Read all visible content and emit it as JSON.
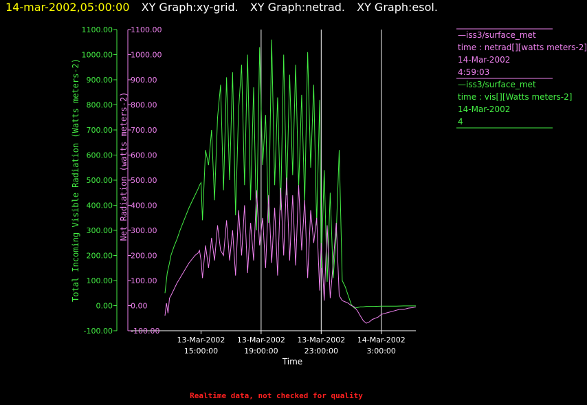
{
  "header": {
    "timestamp": "14-mar-2002,05:00:00",
    "titles": [
      "XY Graph:xy-grid.",
      "XY Graph:netrad.",
      "XY Graph:esol."
    ]
  },
  "colors": {
    "background": "#000000",
    "timestamp": "#ffff00",
    "title": "#ffffff",
    "vis_series": "#44ee44",
    "netrad_series": "#ee82ee",
    "grid": "#ffffff",
    "footer": "#ff2020"
  },
  "legend": [
    {
      "station": "—iss3/surface_met",
      "var": "time : netrad[][watts meters-2]",
      "date": "14-Mar-2002",
      "value": "4:59:03",
      "color": "#ee82ee"
    },
    {
      "station": "—iss3/surface_met",
      "var": "time : vis[][Watts meters-2]",
      "date": "14-Mar-2002",
      "value": "4",
      "color": "#44ee44"
    }
  ],
  "footer": "Realtime data, not checked for quality",
  "chart_data": {
    "type": "line",
    "title": "",
    "xlabel": "Time",
    "ylabel_left": "Total Incoming Visible Radiation (Watts meters-2)",
    "ylabel_right": "Net Radiation (watts meters-2)",
    "xlim": [
      12.6,
      29.3
    ],
    "ylim": [
      -100,
      1100
    ],
    "y_ticks": [
      "-100.00",
      "0.00",
      "100.00",
      "200.00",
      "300.00",
      "400.00",
      "500.00",
      "600.00",
      "700.00",
      "800.00",
      "900.00",
      "1000.00",
      "1100.00"
    ],
    "x_ticks": [
      {
        "x": 15,
        "date": "13-Mar-2002",
        "time": "15:00:00"
      },
      {
        "x": 19,
        "date": "13-Mar-2002",
        "time": "19:00:00"
      },
      {
        "x": 23,
        "date": "13-Mar-2002",
        "time": "23:00:00"
      },
      {
        "x": 27,
        "date": "14-Mar-2002",
        "time": "3:00:00"
      }
    ],
    "vertical_grid_x": [
      19,
      23,
      27
    ],
    "series": [
      {
        "name": "vis",
        "color": "#44ee44",
        "x": [
          12.6,
          12.75,
          12.9,
          13.0,
          13.2,
          13.4,
          13.6,
          13.8,
          14.0,
          14.2,
          14.4,
          14.6,
          14.8,
          14.9,
          15.0,
          15.1,
          15.3,
          15.5,
          15.7,
          15.9,
          16.1,
          16.3,
          16.5,
          16.7,
          16.9,
          17.1,
          17.3,
          17.5,
          17.7,
          17.9,
          18.1,
          18.3,
          18.5,
          18.7,
          18.9,
          19.1,
          19.3,
          19.5,
          19.7,
          19.9,
          20.1,
          20.3,
          20.5,
          20.7,
          20.9,
          21.1,
          21.3,
          21.5,
          21.7,
          21.9,
          22.1,
          22.3,
          22.5,
          22.7,
          22.9,
          23.0,
          23.2,
          23.4,
          23.6,
          23.8,
          24.0,
          24.2,
          24.4,
          24.6,
          24.8,
          25.0,
          25.2,
          25.4,
          25.6,
          25.8,
          26.0,
          26.5,
          27.0,
          27.5,
          28.0,
          28.5,
          29.0,
          29.3
        ],
        "y": [
          50,
          130,
          170,
          200,
          235,
          265,
          300,
          330,
          360,
          390,
          415,
          440,
          465,
          480,
          490,
          340,
          620,
          560,
          700,
          420,
          750,
          880,
          460,
          910,
          500,
          930,
          360,
          780,
          960,
          480,
          1000,
          420,
          870,
          300,
          1030,
          560,
          760,
          330,
          1060,
          480,
          830,
          380,
          1000,
          440,
          920,
          520,
          960,
          470,
          840,
          410,
          1010,
          550,
          880,
          320,
          820,
          150,
          540,
          95,
          450,
          110,
          290,
          620,
          100,
          75,
          40,
          5,
          -10,
          -8,
          -5,
          -5,
          -3,
          -3,
          -2,
          -2,
          -2,
          -1,
          -1,
          -1
        ]
      },
      {
        "name": "netrad",
        "color": "#ee82ee",
        "x": [
          12.6,
          12.7,
          12.8,
          12.9,
          13.0,
          13.2,
          13.4,
          13.6,
          13.8,
          14.0,
          14.2,
          14.4,
          14.6,
          14.8,
          14.9,
          15.0,
          15.1,
          15.3,
          15.5,
          15.7,
          15.9,
          16.1,
          16.3,
          16.5,
          16.7,
          16.9,
          17.1,
          17.3,
          17.5,
          17.7,
          17.9,
          18.1,
          18.3,
          18.5,
          18.7,
          18.9,
          19.1,
          19.3,
          19.5,
          19.7,
          19.9,
          20.1,
          20.3,
          20.5,
          20.7,
          20.9,
          21.1,
          21.3,
          21.5,
          21.7,
          21.9,
          22.1,
          22.3,
          22.5,
          22.7,
          22.9,
          23.0,
          23.2,
          23.4,
          23.6,
          23.8,
          24.0,
          24.2,
          24.4,
          24.6,
          24.8,
          25.0,
          25.2,
          25.4,
          25.6,
          25.8,
          26.0,
          26.2,
          26.4,
          26.6,
          26.8,
          27.0,
          27.3,
          27.6,
          27.9,
          28.2,
          28.5,
          28.8,
          29.1,
          29.3
        ],
        "y": [
          -40,
          10,
          -30,
          30,
          40,
          65,
          90,
          110,
          130,
          150,
          170,
          185,
          200,
          210,
          220,
          180,
          110,
          240,
          150,
          270,
          180,
          320,
          220,
          200,
          340,
          180,
          300,
          120,
          380,
          200,
          400,
          130,
          330,
          180,
          460,
          240,
          350,
          150,
          440,
          170,
          390,
          120,
          470,
          200,
          510,
          180,
          440,
          160,
          480,
          220,
          420,
          110,
          380,
          250,
          350,
          60,
          250,
          20,
          320,
          30,
          170,
          330,
          40,
          20,
          15,
          10,
          0,
          -5,
          -20,
          -40,
          -60,
          -70,
          -65,
          -55,
          -50,
          -45,
          -35,
          -30,
          -25,
          -20,
          -15,
          -15,
          -10,
          -8,
          -5
        ]
      }
    ]
  }
}
